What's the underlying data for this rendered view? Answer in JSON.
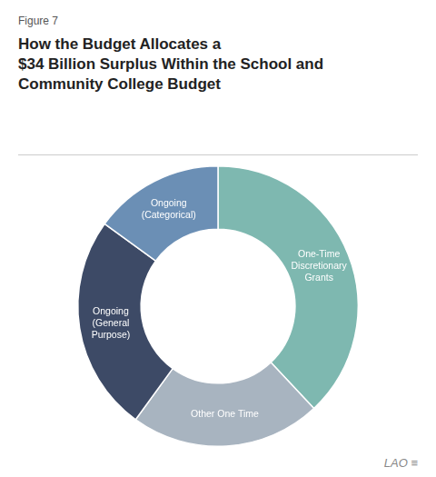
{
  "chart_data": {
    "type": "doughnut",
    "title": "How the Budget Allocates a\n$34 Billion Surplus Within the School and\nCommunity College Budget",
    "annotations": [
      "Figure 7",
      "LAO",
      "≡"
    ],
    "categories": [
      "One-Time\nDiscretionary\nGrants",
      "Other One Time",
      "Ongoing\n(General\nPurpose)",
      "Ongoing\n(Categorical)"
    ],
    "values": [
      38,
      22,
      25,
      15
    ],
    "colors": [
      "#7eb8b0",
      "#a8b4c0",
      "#3d4a66",
      "#6b8fb5"
    ]
  }
}
